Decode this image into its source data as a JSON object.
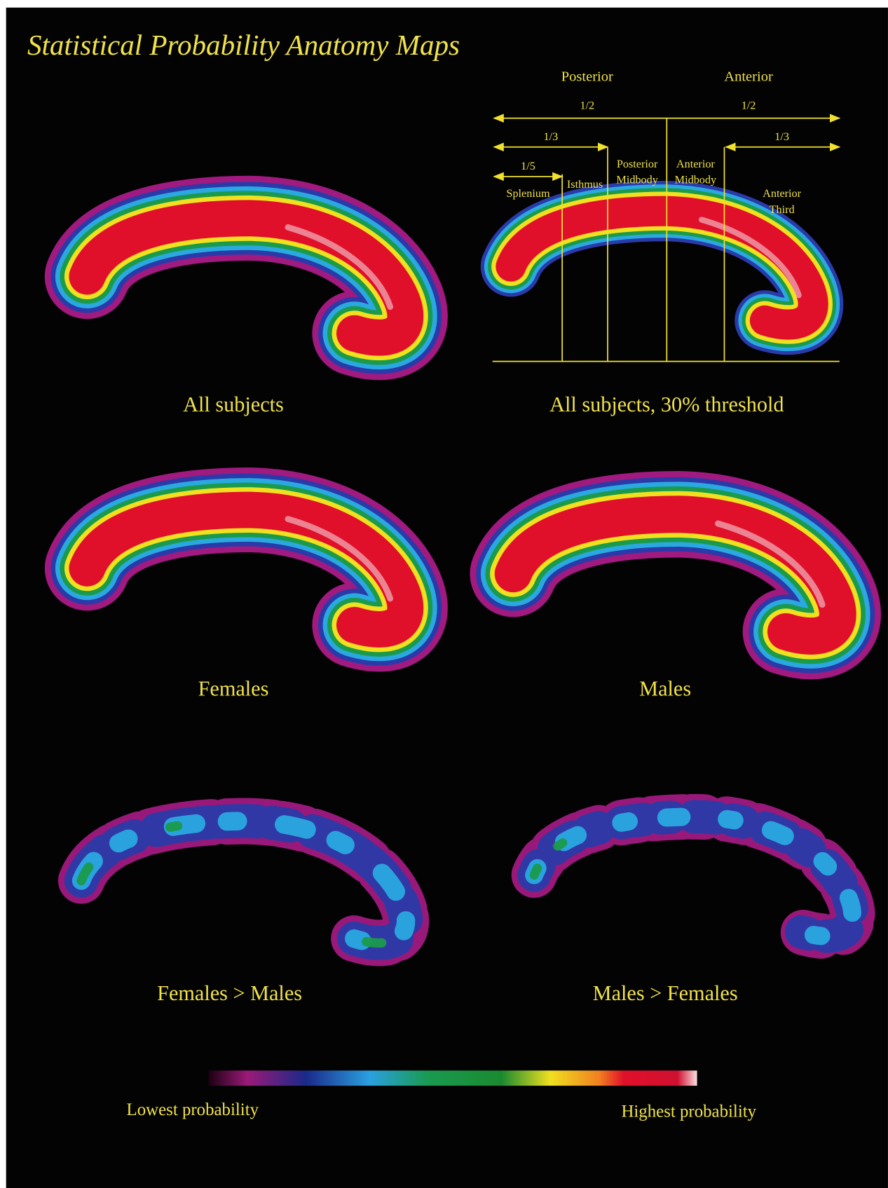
{
  "title": "Statistical Probability Anatomy Maps",
  "panels": [
    {
      "caption": "All subjects"
    },
    {
      "caption": "All subjects, 30% threshold"
    },
    {
      "caption": "Females"
    },
    {
      "caption": "Males"
    },
    {
      "caption": "Females > Males"
    },
    {
      "caption": "Males > Females"
    }
  ],
  "diagram": {
    "posterior": "Posterior",
    "anterior": "Anterior",
    "fractions": [
      "1/2",
      "1/2",
      "1/3",
      "1/3",
      "1/5"
    ],
    "segments": [
      {
        "lines": [
          "Splenium"
        ]
      },
      {
        "lines": [
          "Isthmus"
        ]
      },
      {
        "lines": [
          "Posterior",
          "Midbody"
        ]
      },
      {
        "lines": [
          "Anterior",
          "Midbody"
        ]
      },
      {
        "lines": [
          "Anterior",
          "Third"
        ]
      }
    ]
  },
  "colorbar": {
    "low": "Lowest probability",
    "high": "Highest probability"
  }
}
